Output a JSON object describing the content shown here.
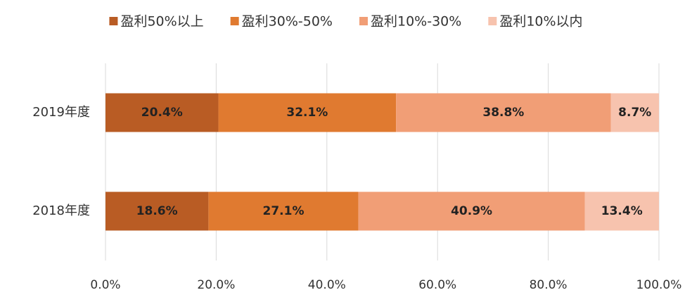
{
  "chart_data": {
    "type": "stacked_bar_horizontal",
    "categories": [
      "2019年度",
      "2018年度"
    ],
    "series": [
      {
        "name": "盈利50%以上",
        "color": "#b95c24",
        "values": [
          20.4,
          18.6
        ],
        "value_labels": [
          "20.4%",
          "18.6%"
        ]
      },
      {
        "name": "盈利30%-50%",
        "color": "#e07a30",
        "values": [
          32.1,
          27.1
        ],
        "value_labels": [
          "32.1%",
          "27.1%"
        ]
      },
      {
        "name": "盈利10%-30%",
        "color": "#f19e76",
        "values": [
          38.8,
          40.9
        ],
        "value_labels": [
          "38.8%",
          "40.9%"
        ]
      },
      {
        "name": "盈利10%以内",
        "color": "#f7c3ae",
        "values": [
          8.7,
          13.4
        ],
        "value_labels": [
          "8.7%",
          "13.4%"
        ]
      }
    ],
    "xlim": [
      0,
      100
    ],
    "xticks": [
      {
        "value": 0,
        "label": "0.0%"
      },
      {
        "value": 20,
        "label": "20.0%"
      },
      {
        "value": 40,
        "label": "40.0%"
      },
      {
        "value": 60,
        "label": "60.0%"
      },
      {
        "value": 80,
        "label": "80.0%"
      },
      {
        "value": 100,
        "label": "100.0%"
      }
    ],
    "grid": true,
    "legend": "top"
  }
}
